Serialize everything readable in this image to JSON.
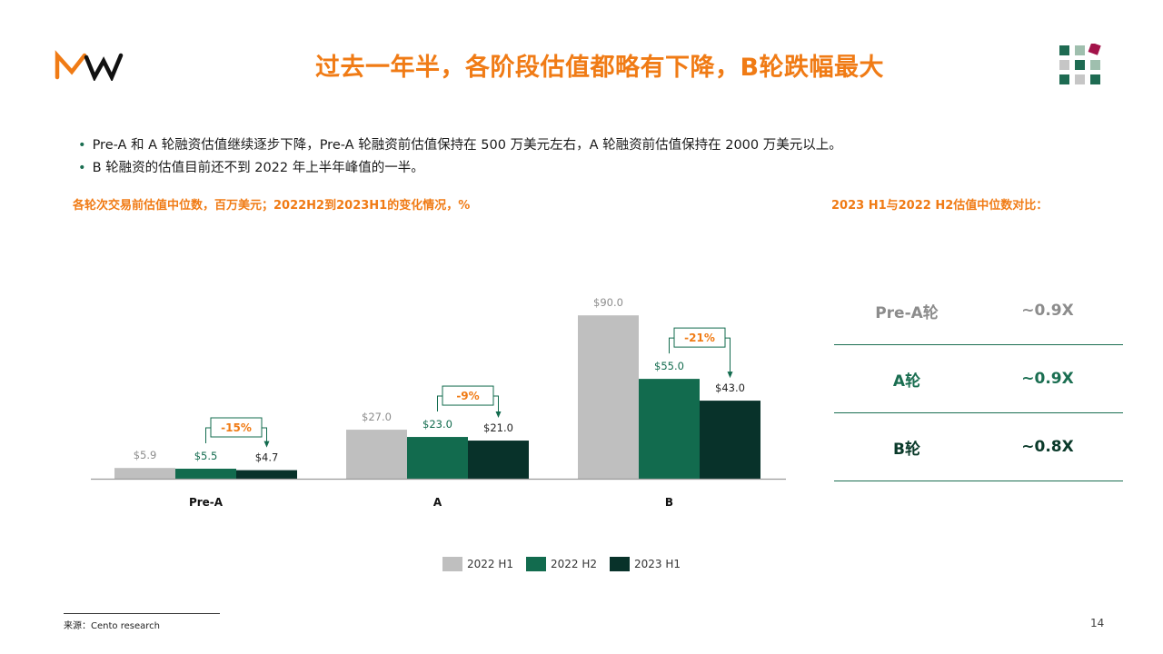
{
  "header": {
    "title": "过去一年半，各阶段估值都略有下降，B轮跌幅最大"
  },
  "colors": {
    "accent": "#F07B15",
    "h1_2022": "#BFBFBF",
    "h2_2022": "#126B4E",
    "h1_2023": "#08322A"
  },
  "bullets": [
    "Pre-A 和 A 轮融资估值继续逐步下降，Pre-A 轮融资前估值保持在 500 万美元左右，A 轮融资前估值保持在 2000 万美元以上。",
    "B 轮融资的估值目前还不到 2022 年上半年峰值的一半。"
  ],
  "chart_subtitle": "各轮次交易前估值中位数，百万美元；2022H2到2023H1的变化情况，%",
  "comparison": {
    "title": "2023 H1与2022 H2估值中位数对比：",
    "rows": [
      {
        "label": "Pre-A轮",
        "value": "~0.9X"
      },
      {
        "label": "A轮",
        "value": "~0.9X"
      },
      {
        "label": "B轮",
        "value": "~0.8X"
      }
    ]
  },
  "chart_data": {
    "type": "bar",
    "categories": [
      "Pre-A",
      "A",
      "B"
    ],
    "series": [
      {
        "name": "2022 H1",
        "values": [
          5.9,
          27.0,
          90.0
        ],
        "labels": [
          "$5.9",
          "$27.0",
          "$90.0"
        ]
      },
      {
        "name": "2022 H2",
        "values": [
          5.5,
          23.0,
          55.0
        ],
        "labels": [
          "$5.5",
          "$23.0",
          "$55.0"
        ]
      },
      {
        "name": "2023 H1",
        "values": [
          4.7,
          21.0,
          43.0
        ],
        "labels": [
          "$4.7",
          "$21.0",
          "$43.0"
        ]
      }
    ],
    "changes": [
      "-15%",
      "-9%",
      "-21%"
    ],
    "ylim": [
      0,
      90
    ],
    "legend": "bottom"
  },
  "footer": {
    "source": "来源：Cento research",
    "page": "14"
  }
}
